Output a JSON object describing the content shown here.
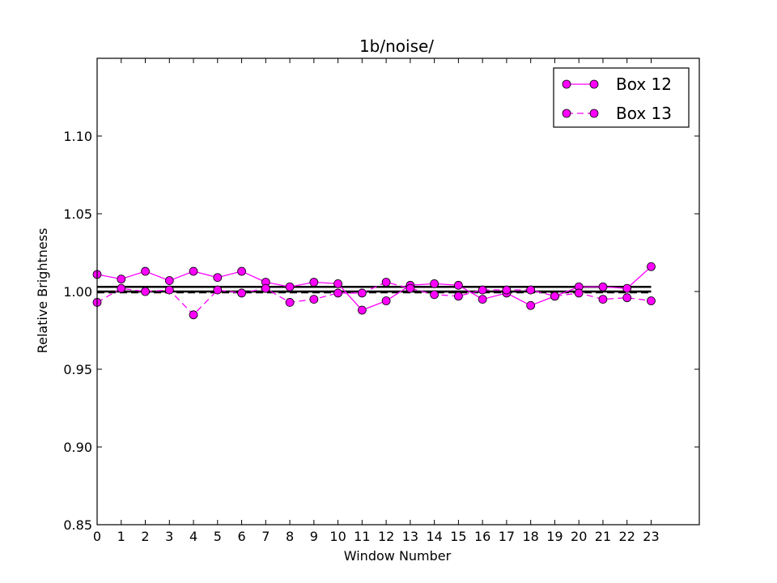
{
  "chart_data": {
    "type": "line",
    "title": "1b/noise/",
    "xlabel": "Window Number",
    "ylabel": "Relative Brightness",
    "xlim": [
      0,
      25
    ],
    "ylim": [
      0.85,
      1.15
    ],
    "x_ticks": [
      0,
      1,
      2,
      3,
      4,
      5,
      6,
      7,
      8,
      9,
      10,
      11,
      12,
      13,
      14,
      15,
      16,
      17,
      18,
      19,
      20,
      21,
      22,
      23
    ],
    "x_tick_labels": [
      "0",
      "1",
      "2",
      "3",
      "4",
      "5",
      "6",
      "7",
      "8",
      "9",
      "10",
      "11",
      "12",
      "13",
      "14",
      "15",
      "16",
      "17",
      "18",
      "19",
      "20",
      "21",
      "22",
      "23"
    ],
    "y_ticks": [
      0.85,
      0.9,
      0.95,
      1.0,
      1.05,
      1.1
    ],
    "y_tick_labels": [
      "0.85",
      "0.90",
      "0.95",
      "1.00",
      "1.05",
      "1.10"
    ],
    "grid": false,
    "legend_position": "top-right",
    "series_color": "#ff00ff",
    "x": [
      0,
      1,
      2,
      3,
      4,
      5,
      6,
      7,
      8,
      9,
      10,
      11,
      12,
      13,
      14,
      15,
      16,
      17,
      18,
      19,
      20,
      21,
      22,
      23
    ],
    "series": [
      {
        "name": "Box 12",
        "line_style": "solid",
        "values": [
          1.011,
          1.008,
          1.013,
          1.007,
          1.013,
          1.009,
          1.013,
          1.006,
          1.003,
          1.006,
          1.005,
          0.988,
          0.994,
          1.004,
          1.005,
          1.004,
          0.995,
          0.999,
          0.991,
          0.997,
          1.003,
          1.003,
          1.002,
          1.016
        ]
      },
      {
        "name": "Box 13",
        "line_style": "dashed",
        "values": [
          0.993,
          1.002,
          1.0,
          1.001,
          0.985,
          1.001,
          0.999,
          1.002,
          0.993,
          0.995,
          0.999,
          0.999,
          1.006,
          1.002,
          0.998,
          0.997,
          1.001,
          1.001,
          1.001,
          0.997,
          0.999,
          0.995,
          0.996,
          0.994
        ]
      }
    ],
    "reference_lines": [
      {
        "y": 1.003,
        "style": "solid",
        "x_range": [
          0,
          23
        ]
      },
      {
        "y": 1.0,
        "style": "solid",
        "x_range": [
          0,
          23
        ]
      },
      {
        "y": 0.9995,
        "style": "dashed",
        "x_range": [
          0,
          23
        ]
      }
    ]
  }
}
